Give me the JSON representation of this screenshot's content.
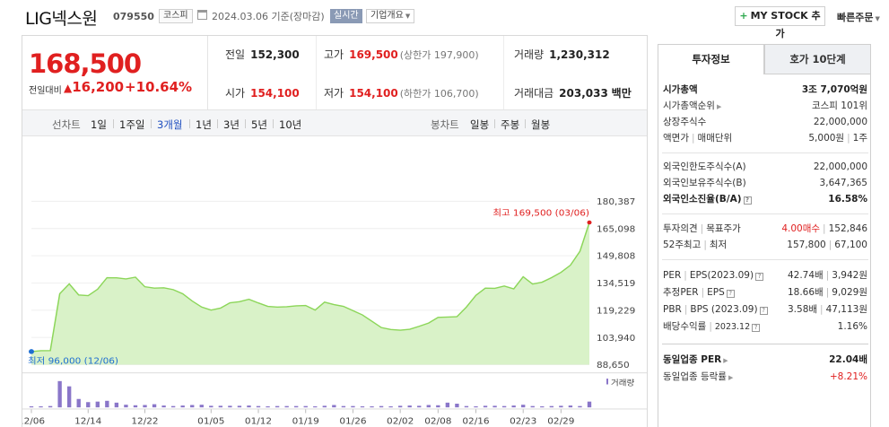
{
  "header": {
    "stock_name": "LIG넥스원",
    "stock_code": "079550",
    "market": "코스피",
    "date": "2024.03.06 기준(장마감)",
    "realtime_label": "실시간",
    "overview_label": "기업개요",
    "mystock_label": "MY STOCK 추가",
    "quick_order_label": "빠른주문"
  },
  "price": {
    "current": "168,500",
    "diff_label": "전일대비",
    "diff_symbol": "▲",
    "diff_value": "16,200",
    "diff_pct": "+10.64%"
  },
  "stats": {
    "prev_label": "전일",
    "prev": "152,300",
    "high_label": "고가",
    "high": "169,500",
    "high_sub": "(상한가 197,900)",
    "volume_label": "거래량",
    "volume": "1,230,312",
    "open_label": "시가",
    "open": "154,100",
    "low_label": "저가",
    "low": "154,100",
    "low_sub": "(하한가 106,700)",
    "amount_label": "거래대금",
    "amount": "203,033",
    "amount_unit": "백만"
  },
  "period_bar": {
    "line_label": "선차트",
    "periods": [
      "1일",
      "1주일",
      "3개월",
      "1년",
      "3년",
      "5년",
      "10년"
    ],
    "active": "3개월",
    "candle_label": "봉차트",
    "candles": [
      "일봉",
      "주봉",
      "월봉"
    ]
  },
  "chart_data": {
    "type": "area",
    "x": [
      "12/06",
      "12/07",
      "12/08",
      "12/11",
      "12/12",
      "12/13",
      "12/14",
      "12/15",
      "12/18",
      "12/19",
      "12/20",
      "12/21",
      "12/22",
      "12/26",
      "12/27",
      "12/28",
      "01/02",
      "01/03",
      "01/04",
      "01/05",
      "01/08",
      "01/09",
      "01/10",
      "01/11",
      "01/12",
      "01/15",
      "01/16",
      "01/17",
      "01/18",
      "01/19",
      "01/22",
      "01/23",
      "01/24",
      "01/25",
      "01/26",
      "01/29",
      "01/30",
      "01/31",
      "02/01",
      "02/02",
      "02/05",
      "02/06",
      "02/07",
      "02/08",
      "02/13",
      "02/14",
      "02/15",
      "02/16",
      "02/19",
      "02/20",
      "02/21",
      "02/22",
      "02/23",
      "02/26",
      "02/27",
      "02/28",
      "02/29",
      "03/04",
      "03/05",
      "03/06"
    ],
    "series": [
      {
        "values": [
          96000,
          96500,
          96600,
          128500,
          134000,
          127800,
          127400,
          131000,
          137500,
          137400,
          136800,
          137800,
          132400,
          131600,
          131800,
          130800,
          128500,
          124400,
          121000,
          119300,
          120400,
          123400,
          124000,
          125400,
          123300,
          121400,
          121000,
          121200,
          121700,
          121900,
          119300,
          123800,
          122400,
          121400,
          119000,
          116600,
          113100,
          109500,
          108400,
          108000,
          108500,
          110200,
          112000,
          115200,
          115400,
          115600,
          121000,
          127600,
          131600,
          131500,
          132800,
          131200,
          138000,
          133900,
          135000,
          137500,
          140500,
          144500,
          152300,
          168500
        ]
      }
    ],
    "volume": [
      0.04,
      0.04,
      0.05,
      1.0,
      0.8,
      0.32,
      0.2,
      0.22,
      0.25,
      0.18,
      0.1,
      0.08,
      0.09,
      0.12,
      0.07,
      0.05,
      0.07,
      0.09,
      0.1,
      0.06,
      0.06,
      0.06,
      0.06,
      0.07,
      0.05,
      0.04,
      0.05,
      0.05,
      0.05,
      0.05,
      0.04,
      0.06,
      0.09,
      0.05,
      0.05,
      0.04,
      0.04,
      0.05,
      0.04,
      0.06,
      0.07,
      0.06,
      0.09,
      0.08,
      0.18,
      0.14,
      0.05,
      0.04,
      0.06,
      0.06,
      0.05,
      0.07,
      0.1,
      0.05,
      0.04,
      0.05,
      0.06,
      0.07,
      0.05,
      0.22
    ],
    "y_ticks": [
      "180,387",
      "165,098",
      "149,808",
      "134,519",
      "119,229",
      "103,940",
      "88,650"
    ],
    "ylim": [
      88650,
      180387
    ],
    "x_ticks": [
      "12/06",
      "12/14",
      "12/22",
      "01/05",
      "01/12",
      "01/19",
      "01/26",
      "02/02",
      "02/08",
      "02/16",
      "02/23",
      "02/29"
    ],
    "high_label": "최고 169,500 (03/06)",
    "low_label": "최저 96,000 (12/06)",
    "volume_legend": "거래량",
    "line_color": "#8cd659",
    "fill_color": "#d9f2c8",
    "volume_color": "#8a76c9"
  },
  "tabs": {
    "active": "투자정보",
    "inactive": "호가 10단계"
  },
  "info": {
    "market_cap_label": "시가총액",
    "market_cap": "3조 7,070억원",
    "rank_label": "시가총액순위",
    "rank": "코스피 101위",
    "shares_label": "상장주식수",
    "shares": "22,000,000",
    "par_label": "액면가",
    "unit_label": "매매단위",
    "par": "5,000원",
    "unit": "1주",
    "foreign_limit_label": "외국인한도주식수(A)",
    "foreign_limit": "22,000,000",
    "foreign_hold_label": "외국인보유주식수(B)",
    "foreign_hold": "3,647,365",
    "foreign_ratio_label": "외국인소진율(B/A)",
    "foreign_ratio": "16.58%",
    "opinion_label": "투자의견",
    "target_label": "목표주가",
    "opinion": "4.00매수",
    "target": "152,846",
    "w52_label": "52주최고",
    "w52_low_label": "최저",
    "w52_high": "157,800",
    "w52_low": "67,100",
    "per_label": "PER",
    "eps_label": "EPS(2023.09)",
    "per": "42.74배",
    "eps": "3,942원",
    "est_per_label": "추정PER",
    "est_eps_label": "EPS",
    "est_per": "18.66배",
    "est_eps": "9,029원",
    "pbr_label": "PBR",
    "bps_label": "BPS (2023.09)",
    "pbr": "3.58배",
    "bps": "47,113원",
    "div_label": "배당수익률",
    "div_date": "2023.12",
    "div": "1.16%",
    "ind_per_label": "동일업종 PER",
    "ind_per": "22.04배",
    "ind_rate_label": "동일업종 등락률",
    "ind_rate": "+8.21%"
  }
}
